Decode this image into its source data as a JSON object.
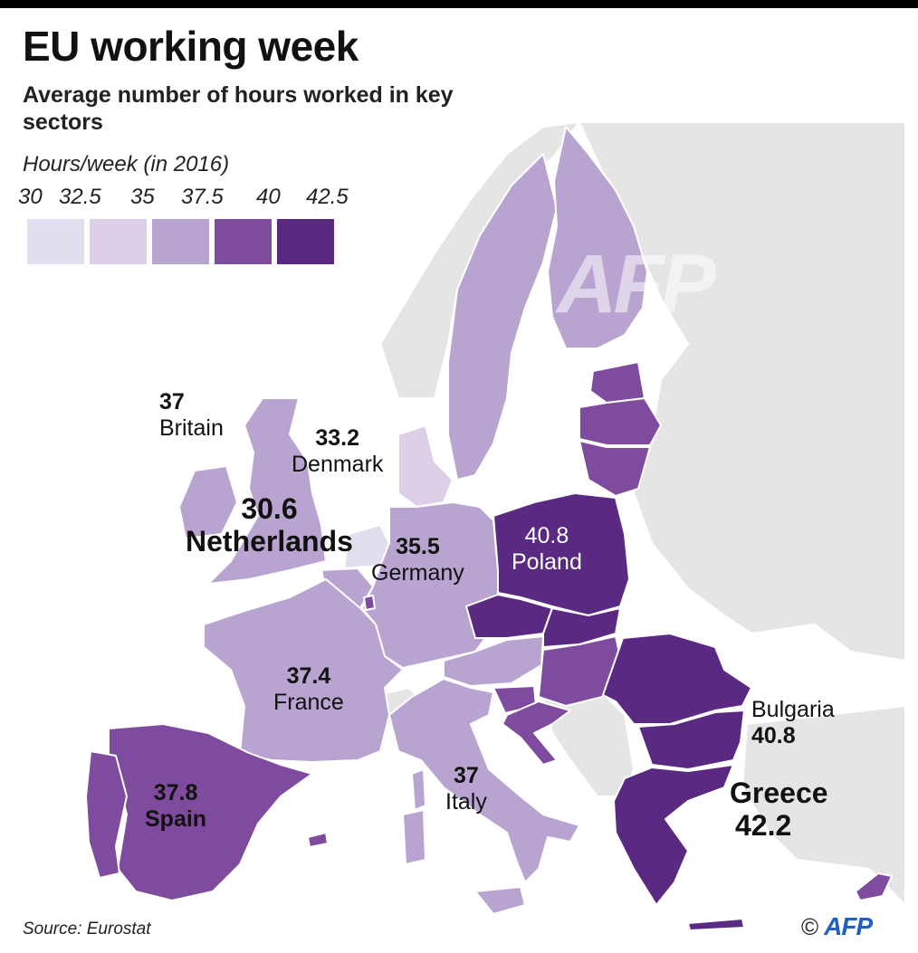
{
  "title": "EU working week",
  "subtitle": "Average number of hours worked in key sectors",
  "legend": {
    "title": "Hours/week (in 2016)",
    "ticks": [
      "30",
      "32.5",
      "35",
      "37.5",
      "40",
      "42.5"
    ],
    "colors": [
      "#e0deef",
      "#ddd0e6",
      "#b9a3d0",
      "#7f4b9e",
      "#5a2a83"
    ]
  },
  "colors": {
    "non_eu_land": "#e5e5e5",
    "borders": "#ffffff"
  },
  "countries": {
    "britain": {
      "name": "Britain",
      "value": "37"
    },
    "denmark": {
      "name": "Denmark",
      "value": "33.2"
    },
    "netherlands": {
      "name": "Netherlands",
      "value": "30.6"
    },
    "germany": {
      "name": "Germany",
      "value": "35.5"
    },
    "poland": {
      "name": "Poland",
      "value": "40.8"
    },
    "france": {
      "name": "France",
      "value": "37.4"
    },
    "spain": {
      "name": "Spain",
      "value": "37.8"
    },
    "italy": {
      "name": "Italy",
      "value": "37"
    },
    "bulgaria": {
      "name": "Bulgaria",
      "value": "40.8"
    },
    "greece": {
      "name": "Greece",
      "value": "42.2"
    }
  },
  "source": "Source: Eurostat",
  "credit": {
    "symbol": "©",
    "logo": "AFP"
  },
  "watermark": "AFP"
}
